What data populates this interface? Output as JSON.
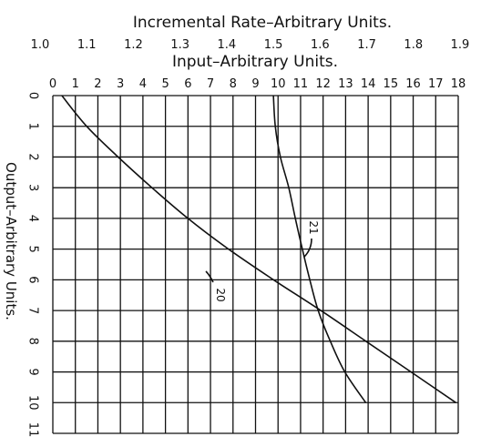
{
  "chart_data": {
    "type": "line",
    "title": "Incremental Rate–Arbitrary Units.",
    "top_axis": {
      "label": "Incremental Rate–Arbitrary Units.",
      "ticks": [
        "1.0",
        "1.1",
        "1.2",
        "1.3",
        "1.4",
        "1.5",
        "1.6",
        "1.7",
        "1.8",
        "1.9"
      ],
      "range": [
        1.0,
        1.9
      ]
    },
    "xlabel": "Input–Arbitrary Units.",
    "x_ticks": [
      "0",
      "1",
      "2",
      "3",
      "4",
      "5",
      "6",
      "7",
      "8",
      "9",
      "10",
      "11",
      "12",
      "13",
      "14",
      "15",
      "16",
      "17",
      "18"
    ],
    "xlim": [
      0,
      18
    ],
    "ylabel": "Output–Arbitrary Units.",
    "y_ticks": [
      "0",
      "1",
      "2",
      "3",
      "4",
      "5",
      "6",
      "7",
      "8",
      "9",
      "10",
      "11"
    ],
    "ylim": [
      0,
      11
    ],
    "y_inverted": true,
    "grid": true,
    "series": [
      {
        "name": "20",
        "x_axis": "Input",
        "points": [
          [
            0.4,
            0
          ],
          [
            1.5,
            1
          ],
          [
            2.9,
            2
          ],
          [
            4.4,
            3
          ],
          [
            6.0,
            4
          ],
          [
            7.8,
            5
          ],
          [
            9.8,
            6
          ],
          [
            11.9,
            7
          ],
          [
            13.9,
            8
          ],
          [
            15.9,
            9
          ],
          [
            17.9,
            10
          ]
        ]
      },
      {
        "name": "21",
        "x_axis": "Incremental Rate",
        "points": [
          [
            1.5,
            0
          ],
          [
            1.504,
            1
          ],
          [
            1.515,
            2
          ],
          [
            1.533,
            3
          ],
          [
            1.547,
            4
          ],
          [
            1.562,
            5
          ],
          [
            1.578,
            6
          ],
          [
            1.596,
            7
          ],
          [
            1.622,
            8
          ],
          [
            1.653,
            9
          ],
          [
            1.698,
            10
          ]
        ]
      }
    ]
  }
}
